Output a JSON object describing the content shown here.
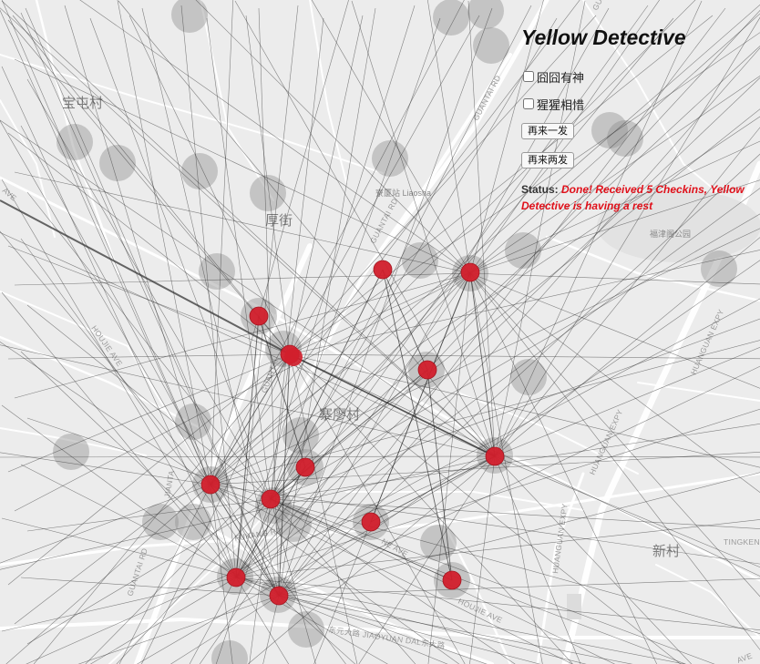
{
  "app": {
    "title": "Yellow Detective",
    "options": [
      {
        "label": "囧囧有神",
        "checked": false
      },
      {
        "label": "猩猩相惜",
        "checked": false
      }
    ],
    "buttons": [
      {
        "label": "再来一发"
      },
      {
        "label": "再来两发"
      }
    ],
    "status": {
      "label": "Status:",
      "text": "Done! Received 5 Checkins, Yellow Detective is having a rest"
    }
  },
  "map": {
    "labels": {
      "village_baotun": "宝屯村",
      "street_hou": "厚街",
      "village_zhailiao": "寨廖村",
      "village_xin": "新村",
      "station_liaosha": "寮厦站 Liaosha",
      "park_fuzhou": "福津阁公园",
      "road_guantai_1": "GUANTAI RD",
      "road_guantai_2": "GUANTAI RD",
      "road_guantai_3": "GUANTAI RD",
      "road_guantai_4": "GUANTAI",
      "road_guantai_5": "GUANTAI RD",
      "road_houjie": "HOUJIE AVE",
      "road_huanguan_1": "HUANGUAN EXPY",
      "road_huanguan_2": "HUANGUAN EXPY",
      "road_huanguan_3": "HUANGUAN EXPY",
      "road_tingken": "TINGKEN",
      "road_fukang": "FUKANG RD",
      "road_jiaoyuan": "东元大路 JIAOYUAN DAL东大路",
      "road_houjie_ave": "HOUJIE AVE",
      "road_ave_1": "AVE",
      "road_ave_2": "AVE",
      "road_jianta": "JIANTA",
      "road_ne_ave": "NE AVE"
    },
    "colors": {
      "background": "#ececec",
      "road": "#ffffff",
      "checkin_marker": "#d21f2c",
      "halo": "#8c8c8c",
      "link_line": "#2a2a2a",
      "status_text": "#e0101a"
    }
  }
}
